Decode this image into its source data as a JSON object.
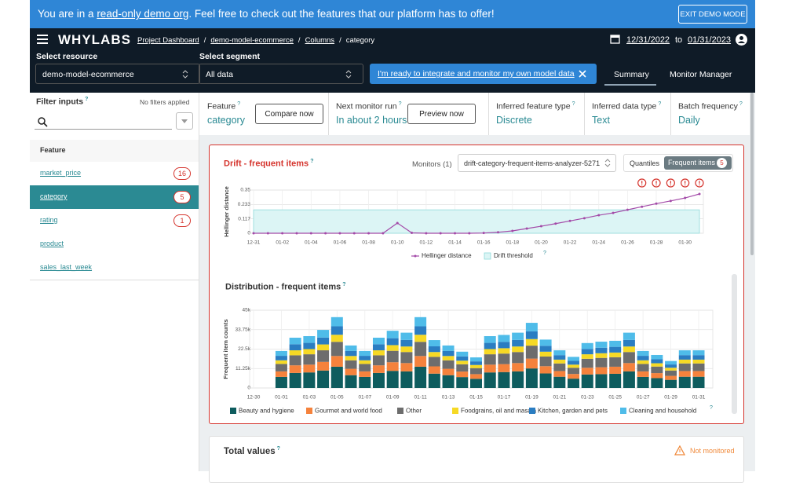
{
  "help_icon": "?",
  "banner": {
    "text_before": "You are in a ",
    "link": "read-only demo org",
    "text_after": ". Feel free to check out the features that our platform has to offer!",
    "button": "EXIT DEMO MODE"
  },
  "header": {
    "logo": "WHYLABS",
    "breadcrumbs": [
      "Project Dashboard",
      "demo-model-ecommerce",
      "Columns",
      "category"
    ],
    "separator": "/",
    "date_from": "12/31/2022",
    "date_to_label": "to",
    "date_to": "01/31/2023"
  },
  "selectors": {
    "resource_label": "Select resource",
    "resource": "demo-model-ecommerce",
    "segment_label": "Select segment",
    "segment": "All data",
    "integrate_link": "I'm ready to integrate and monitor my own model data"
  },
  "tabs": [
    "Summary",
    "Monitor Manager"
  ],
  "sidebar": {
    "title": "Filter inputs",
    "status": "No filters applied",
    "column_header": "Feature",
    "features": [
      {
        "name": "market_price",
        "alerts": 16
      },
      {
        "name": "category",
        "alerts": 5
      },
      {
        "name": "rating",
        "alerts": 1
      },
      {
        "name": "product"
      },
      {
        "name": "sales_last_week"
      }
    ]
  },
  "summary": {
    "cards": [
      {
        "label": "Feature",
        "value": "category",
        "button": "Compare now"
      },
      {
        "label": "Next monitor run",
        "value": "In about 2 hours",
        "button": "Preview now"
      },
      {
        "label": "Inferred feature type",
        "value": "Discrete"
      },
      {
        "label": "Inferred data type",
        "value": "Text"
      },
      {
        "label": "Batch frequency",
        "value": "Daily"
      }
    ]
  },
  "chart_data": [
    {
      "type": "line",
      "title": "Drift - frequent items",
      "monitors_label": "Monitors (1)",
      "monitor": "drift-category-frequent-items-analyzer-5271",
      "toggle": [
        "Quantiles",
        "Frequent items"
      ],
      "alert_count": 5,
      "y_label": "Hellinger distance",
      "x": [
        "12-31",
        null,
        "01-02",
        null,
        "01-04",
        null,
        "01-06",
        null,
        "01-08",
        null,
        "01-10",
        null,
        "01-12",
        null,
        "01-14",
        null,
        "01-16",
        null,
        "01-18",
        null,
        "01-20",
        null,
        "01-22",
        null,
        "01-24",
        null,
        "01-26",
        null,
        "01-28",
        null,
        "01-30",
        null
      ],
      "series": [
        {
          "name": "Hellinger distance",
          "color": "#a34aa8",
          "values": [
            0,
            0,
            0,
            0,
            0,
            0,
            0,
            0,
            0,
            0,
            0.083,
            0.003,
            0,
            0,
            0,
            0,
            0.002,
            0.008,
            0.019,
            0.038,
            0.057,
            0.078,
            0.1,
            0.122,
            0.146,
            0.165,
            0.19,
            0.215,
            0.24,
            0.262,
            0.286,
            0.318
          ]
        }
      ],
      "threshold": 0.19,
      "threshold_name": "Drift threshold",
      "threshold_color": "#dcf5f5",
      "ylim": [
        0,
        0.35
      ],
      "yticks": [
        0,
        0.117,
        0.233,
        0.35
      ],
      "grid": true
    },
    {
      "type": "bar",
      "stacked": true,
      "title": "Distribution - frequent items",
      "y_label": "Frequent item counts",
      "categories": [
        "12-30",
        null,
        "01-01",
        null,
        "01-03",
        null,
        "01-05",
        null,
        "01-07",
        null,
        "01-09",
        null,
        "01-11",
        null,
        "01-13",
        null,
        "01-15",
        null,
        "01-17",
        null,
        "01-19",
        null,
        "01-21",
        null,
        "01-23",
        null,
        "01-25",
        null,
        "01-27",
        null,
        "01-29",
        null,
        "01-31"
      ],
      "series": [
        {
          "name": "Beauty and hygiene",
          "color": "#0e5c5e",
          "values": [
            null,
            null,
            6400,
            8700,
            9000,
            10100,
            12300,
            7400,
            6400,
            8700,
            9900,
            9600,
            12300,
            8300,
            7400,
            6300,
            5300,
            9000,
            9200,
            9600,
            11300,
            8400,
            6500,
            5400,
            7800,
            8000,
            8200,
            9600,
            6400,
            5700,
            4700,
            6500,
            6500
          ]
        },
        {
          "name": "Gourmet and world food",
          "color": "#f5823c",
          "values": [
            null,
            null,
            3200,
            4400,
            4500,
            5000,
            6200,
            3700,
            3200,
            4400,
            5000,
            4800,
            6200,
            4200,
            3700,
            3200,
            2700,
            4500,
            4600,
            4800,
            5700,
            4200,
            3300,
            2700,
            3900,
            4000,
            4100,
            4800,
            3200,
            2900,
            2300,
            3300,
            3300
          ]
        },
        {
          "name": "Other",
          "color": "#6d6d6d",
          "values": [
            null,
            null,
            4300,
            5800,
            6000,
            6700,
            8200,
            4900,
            4300,
            5800,
            6600,
            6400,
            8200,
            5500,
            4900,
            4200,
            3500,
            6000,
            6100,
            6400,
            7500,
            5600,
            4400,
            3600,
            5200,
            5400,
            5500,
            6400,
            4300,
            3800,
            3100,
            4400,
            4400
          ]
        },
        {
          "name": "Foodgrains, oil and masala",
          "color": "#f6d925",
          "values": [
            null,
            null,
            2100,
            2900,
            3000,
            3400,
            4100,
            2500,
            2100,
            2900,
            3300,
            3200,
            4100,
            2800,
            2500,
            2100,
            1800,
            3000,
            3100,
            3200,
            3800,
            2800,
            2200,
            1800,
            2600,
            2700,
            2700,
            3200,
            2100,
            1900,
            1600,
            2200,
            2200
          ]
        },
        {
          "name": "Kitchen, garden and pets",
          "color": "#2a7dc2",
          "values": [
            null,
            null,
            2600,
            3500,
            3600,
            4000,
            4900,
            2900,
            2600,
            3500,
            4000,
            3800,
            4900,
            3300,
            2900,
            2500,
            2100,
            3600,
            3700,
            3800,
            4500,
            3400,
            2600,
            2200,
            3100,
            3200,
            3300,
            3800,
            2600,
            2300,
            1900,
            2600,
            2600
          ]
        },
        {
          "name": "Cleaning and household",
          "color": "#4fbce9",
          "values": [
            null,
            null,
            2800,
            3800,
            3900,
            4400,
            5300,
            3200,
            2800,
            3800,
            4300,
            4200,
            5300,
            3600,
            3200,
            2700,
            2300,
            3900,
            4000,
            4200,
            4900,
            3600,
            2800,
            2300,
            3400,
            3500,
            3500,
            4200,
            2800,
            2500,
            2000,
            2800,
            2800
          ]
        }
      ],
      "ylim": [
        0,
        45000
      ],
      "yticks": [
        0,
        {
          "value": 11250,
          "label": "11.25k"
        },
        {
          "value": 22500,
          "label": "22.5k"
        },
        {
          "value": 33750,
          "label": "33.75k"
        },
        {
          "value": 45000,
          "label": "45k"
        }
      ],
      "grid": true
    }
  ],
  "total": {
    "title": "Total values",
    "status": "Not monitored"
  }
}
